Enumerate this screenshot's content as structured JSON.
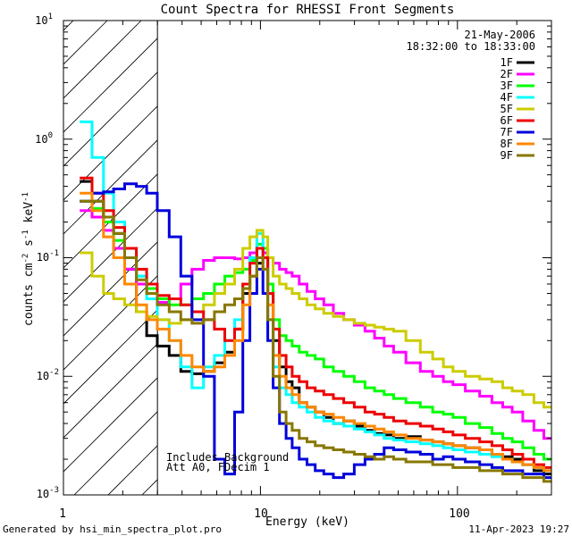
{
  "chart_data": {
    "type": "line",
    "title": "Count Spectra for RHESSI Front Segments",
    "xlabel": "Energy (keV)",
    "ylabel": "counts cm^-2 s^-1 keV^-1",
    "xscale": "log",
    "yscale": "log",
    "xlim": [
      1,
      300
    ],
    "ylim": [
      0.001,
      10
    ],
    "x_tick_labels": [
      {
        "value": 1,
        "label": "1"
      },
      {
        "value": 10,
        "label": "10"
      },
      {
        "value": 100,
        "label": "100"
      }
    ],
    "y_tick_labels": [
      {
        "value": 10,
        "base": "10",
        "exp": "1"
      },
      {
        "value": 1,
        "base": "10",
        "exp": "0"
      },
      {
        "value": 0.1,
        "base": "10",
        "exp": "-1"
      },
      {
        "value": 0.01,
        "base": "10",
        "exp": "-2"
      },
      {
        "value": 0.001,
        "base": "10",
        "exp": "-3"
      }
    ],
    "hatched_region": {
      "x_from": 1,
      "x_to": 3
    },
    "date_label": "21-May-2006",
    "time_label": "18:32:00 to 18:33:00",
    "annotations": [
      "Includes Background",
      "Att A0, FDecim 1"
    ],
    "footer_left": "Generated by hsi_min_spectra_plot.pro",
    "footer_right": "11-Apr-2023 19:27",
    "series": [
      {
        "name": "1F",
        "color": "#000000",
        "x": [
          1.3,
          1.5,
          1.7,
          1.9,
          2.2,
          2.5,
          2.8,
          3.2,
          3.7,
          4.2,
          4.8,
          5.5,
          6.2,
          7.0,
          7.8,
          8.5,
          9.2,
          10.0,
          10.6,
          11.2,
          12.0,
          13.0,
          14.0,
          15.0,
          16.5,
          18.0,
          20.0,
          22.0,
          25.0,
          28.0,
          32.0,
          36.0,
          40.0,
          45.0,
          50.0,
          60.0,
          70.0,
          80.0,
          90.0,
          100.0,
          120.0,
          140.0,
          160.0,
          180.0,
          200.0,
          230.0,
          260.0,
          290.0
        ],
        "y": [
          0.44,
          0.3,
          0.22,
          0.16,
          0.08,
          0.035,
          0.022,
          0.018,
          0.015,
          0.011,
          0.0105,
          0.011,
          0.013,
          0.016,
          0.025,
          0.05,
          0.07,
          0.09,
          0.1,
          0.05,
          0.02,
          0.012,
          0.009,
          0.008,
          0.006,
          0.0055,
          0.005,
          0.0045,
          0.004,
          0.0042,
          0.0038,
          0.0035,
          0.0033,
          0.0032,
          0.003,
          0.0031,
          0.0029,
          0.0028,
          0.0027,
          0.0026,
          0.0025,
          0.0024,
          0.0022,
          0.0021,
          0.002,
          0.0018,
          0.0016,
          0.0015
        ]
      },
      {
        "name": "2F",
        "color": "#ff00ff",
        "x": [
          1.3,
          1.5,
          1.7,
          1.9,
          2.2,
          2.5,
          2.8,
          3.2,
          3.7,
          4.2,
          4.8,
          5.5,
          6.2,
          7.0,
          7.8,
          8.5,
          9.2,
          10.0,
          10.6,
          11.2,
          12.0,
          13.0,
          14.0,
          15.0,
          16.5,
          18.0,
          20.0,
          22.0,
          25.0,
          28.0,
          32.0,
          36.0,
          40.0,
          45.0,
          50.0,
          60.0,
          70.0,
          80.0,
          90.0,
          100.0,
          120.0,
          140.0,
          160.0,
          180.0,
          200.0,
          230.0,
          260.0,
          290.0
        ],
        "y": [
          0.25,
          0.22,
          0.17,
          0.12,
          0.08,
          0.06,
          0.05,
          0.042,
          0.045,
          0.06,
          0.08,
          0.095,
          0.1,
          0.1,
          0.098,
          0.1,
          0.11,
          0.12,
          0.11,
          0.1,
          0.09,
          0.08,
          0.075,
          0.07,
          0.06,
          0.052,
          0.045,
          0.04,
          0.034,
          0.03,
          0.027,
          0.024,
          0.021,
          0.018,
          0.016,
          0.013,
          0.011,
          0.01,
          0.009,
          0.0085,
          0.0075,
          0.0068,
          0.006,
          0.0055,
          0.005,
          0.0042,
          0.0035,
          0.003
        ]
      },
      {
        "name": "3F",
        "color": "#00ff00",
        "x": [
          1.3,
          1.5,
          1.7,
          1.9,
          2.2,
          2.5,
          2.8,
          3.2,
          3.7,
          4.2,
          4.8,
          5.5,
          6.2,
          7.0,
          7.8,
          8.5,
          9.2,
          10.0,
          10.6,
          11.2,
          12.0,
          13.0,
          14.0,
          15.0,
          16.5,
          18.0,
          20.0,
          22.0,
          25.0,
          28.0,
          32.0,
          36.0,
          40.0,
          45.0,
          50.0,
          60.0,
          70.0,
          80.0,
          90.0,
          100.0,
          120.0,
          140.0,
          160.0,
          180.0,
          200.0,
          230.0,
          260.0,
          290.0
        ],
        "y": [
          0.3,
          0.26,
          0.2,
          0.14,
          0.1,
          0.07,
          0.055,
          0.045,
          0.04,
          0.04,
          0.045,
          0.05,
          0.06,
          0.07,
          0.075,
          0.08,
          0.095,
          0.13,
          0.12,
          0.06,
          0.03,
          0.022,
          0.02,
          0.018,
          0.016,
          0.015,
          0.014,
          0.012,
          0.011,
          0.01,
          0.009,
          0.008,
          0.0075,
          0.007,
          0.0065,
          0.006,
          0.0055,
          0.005,
          0.0048,
          0.0045,
          0.004,
          0.0037,
          0.0033,
          0.003,
          0.0028,
          0.0025,
          0.0022,
          0.002
        ]
      },
      {
        "name": "4F",
        "color": "#00ffff",
        "x": [
          1.3,
          1.5,
          1.7,
          1.9,
          2.2,
          2.5,
          2.8,
          3.2,
          3.7,
          4.2,
          4.8,
          5.5,
          6.2,
          7.0,
          7.8,
          8.5,
          9.2,
          10.0,
          10.6,
          11.2,
          12.0,
          13.0,
          14.0,
          15.0,
          16.5,
          18.0,
          20.0,
          22.0,
          25.0,
          28.0,
          32.0,
          36.0,
          40.0,
          45.0,
          50.0,
          60.0,
          70.0,
          80.0,
          90.0,
          100.0,
          120.0,
          140.0,
          160.0,
          180.0,
          200.0,
          230.0,
          260.0,
          290.0
        ],
        "y": [
          1.4,
          0.7,
          0.35,
          0.2,
          0.12,
          0.07,
          0.045,
          0.03,
          0.02,
          0.012,
          0.008,
          0.012,
          0.015,
          0.02,
          0.03,
          0.06,
          0.1,
          0.16,
          0.1,
          0.03,
          0.012,
          0.008,
          0.007,
          0.006,
          0.0055,
          0.005,
          0.0045,
          0.0042,
          0.004,
          0.0038,
          0.0036,
          0.0034,
          0.0032,
          0.003,
          0.0029,
          0.0028,
          0.0027,
          0.0026,
          0.0025,
          0.0024,
          0.0023,
          0.0022,
          0.0021,
          0.002,
          0.0019,
          0.0018,
          0.0017,
          0.0016
        ]
      },
      {
        "name": "5F",
        "color": "#cccc00",
        "x": [
          1.3,
          1.5,
          1.7,
          1.9,
          2.2,
          2.5,
          2.8,
          3.2,
          3.7,
          4.2,
          4.8,
          5.5,
          6.2,
          7.0,
          7.8,
          8.5,
          9.2,
          10.0,
          10.6,
          11.2,
          12.0,
          13.0,
          14.0,
          15.0,
          16.5,
          18.0,
          20.0,
          22.0,
          25.0,
          28.0,
          32.0,
          36.0,
          40.0,
          45.0,
          50.0,
          60.0,
          70.0,
          80.0,
          90.0,
          100.0,
          120.0,
          140.0,
          160.0,
          180.0,
          200.0,
          230.0,
          260.0,
          290.0
        ],
        "y": [
          0.11,
          0.07,
          0.05,
          0.045,
          0.04,
          0.035,
          0.032,
          0.03,
          0.028,
          0.03,
          0.035,
          0.04,
          0.05,
          0.06,
          0.08,
          0.12,
          0.15,
          0.17,
          0.15,
          0.1,
          0.07,
          0.06,
          0.055,
          0.05,
          0.045,
          0.04,
          0.037,
          0.034,
          0.032,
          0.03,
          0.028,
          0.027,
          0.026,
          0.025,
          0.024,
          0.02,
          0.016,
          0.014,
          0.012,
          0.011,
          0.01,
          0.0095,
          0.009,
          0.008,
          0.0075,
          0.007,
          0.006,
          0.0055
        ]
      },
      {
        "name": "6F",
        "color": "#ee0000",
        "x": [
          1.3,
          1.5,
          1.7,
          1.9,
          2.2,
          2.5,
          2.8,
          3.2,
          3.7,
          4.2,
          4.8,
          5.5,
          6.2,
          7.0,
          7.8,
          8.5,
          9.2,
          10.0,
          10.6,
          11.2,
          12.0,
          13.0,
          14.0,
          15.0,
          16.5,
          18.0,
          20.0,
          22.0,
          25.0,
          28.0,
          32.0,
          36.0,
          40.0,
          45.0,
          50.0,
          60.0,
          70.0,
          80.0,
          90.0,
          100.0,
          120.0,
          140.0,
          160.0,
          180.0,
          200.0,
          230.0,
          260.0,
          290.0
        ],
        "y": [
          0.47,
          0.35,
          0.25,
          0.18,
          0.12,
          0.08,
          0.06,
          0.048,
          0.045,
          0.04,
          0.035,
          0.03,
          0.025,
          0.02,
          0.025,
          0.06,
          0.09,
          0.12,
          0.1,
          0.05,
          0.025,
          0.015,
          0.012,
          0.01,
          0.009,
          0.008,
          0.0075,
          0.007,
          0.0065,
          0.006,
          0.0055,
          0.005,
          0.0048,
          0.0045,
          0.0042,
          0.004,
          0.0038,
          0.0036,
          0.0034,
          0.0032,
          0.003,
          0.0028,
          0.0026,
          0.0024,
          0.0022,
          0.002,
          0.0018,
          0.0017
        ]
      },
      {
        "name": "7F",
        "color": "#0000dd",
        "x": [
          1.3,
          1.5,
          1.7,
          1.9,
          2.2,
          2.5,
          2.8,
          3.2,
          3.7,
          4.2,
          4.8,
          5.5,
          6.2,
          7.0,
          7.8,
          8.5,
          9.2,
          10.0,
          10.6,
          11.2,
          12.0,
          13.0,
          14.0,
          15.0,
          16.5,
          18.0,
          20.0,
          22.0,
          25.0,
          28.0,
          32.0,
          36.0,
          40.0,
          45.0,
          50.0,
          60.0,
          70.0,
          80.0,
          90.0,
          100.0,
          120.0,
          140.0,
          160.0,
          180.0,
          200.0,
          230.0,
          260.0,
          290.0
        ],
        "y": [
          0.3,
          0.35,
          0.36,
          0.38,
          0.42,
          0.4,
          0.35,
          0.25,
          0.15,
          0.07,
          0.03,
          0.01,
          0.002,
          0.0015,
          0.005,
          0.02,
          0.05,
          0.08,
          0.05,
          0.02,
          0.008,
          0.004,
          0.003,
          0.0025,
          0.002,
          0.0018,
          0.0016,
          0.0015,
          0.0014,
          0.0015,
          0.0018,
          0.002,
          0.0022,
          0.0025,
          0.0024,
          0.0023,
          0.0022,
          0.002,
          0.0021,
          0.002,
          0.0019,
          0.0018,
          0.0017,
          0.0016,
          0.0016,
          0.0015,
          0.0015,
          0.0014
        ]
      },
      {
        "name": "8F",
        "color": "#ff8800",
        "x": [
          1.3,
          1.5,
          1.7,
          1.9,
          2.2,
          2.5,
          2.8,
          3.2,
          3.7,
          4.2,
          4.8,
          5.5,
          6.2,
          7.0,
          7.8,
          8.5,
          9.2,
          10.0,
          10.6,
          11.2,
          12.0,
          13.0,
          14.0,
          15.0,
          16.5,
          18.0,
          20.0,
          22.0,
          25.0,
          28.0,
          32.0,
          36.0,
          40.0,
          45.0,
          50.0,
          60.0,
          70.0,
          80.0,
          90.0,
          100.0,
          120.0,
          140.0,
          160.0,
          180.0,
          200.0,
          230.0,
          260.0,
          290.0
        ],
        "y": [
          0.35,
          0.25,
          0.15,
          0.1,
          0.06,
          0.04,
          0.03,
          0.025,
          0.02,
          0.015,
          0.012,
          0.011,
          0.012,
          0.015,
          0.02,
          0.04,
          0.07,
          0.1,
          0.08,
          0.04,
          0.015,
          0.01,
          0.008,
          0.007,
          0.006,
          0.0055,
          0.005,
          0.0048,
          0.0045,
          0.0042,
          0.004,
          0.0038,
          0.0036,
          0.0034,
          0.0032,
          0.003,
          0.0029,
          0.0028,
          0.0027,
          0.0026,
          0.0025,
          0.0024,
          0.0022,
          0.002,
          0.0019,
          0.0018,
          0.0017,
          0.0016
        ]
      },
      {
        "name": "9F",
        "color": "#887700",
        "x": [
          1.3,
          1.5,
          1.7,
          1.9,
          2.2,
          2.5,
          2.8,
          3.2,
          3.7,
          4.2,
          4.8,
          5.5,
          6.2,
          7.0,
          7.8,
          8.5,
          9.2,
          10.0,
          10.6,
          11.2,
          12.0,
          13.0,
          14.0,
          15.0,
          16.5,
          18.0,
          20.0,
          22.0,
          25.0,
          28.0,
          32.0,
          36.0,
          40.0,
          45.0,
          50.0,
          60.0,
          70.0,
          80.0,
          90.0,
          100.0,
          120.0,
          140.0,
          160.0,
          180.0,
          200.0,
          230.0,
          260.0,
          290.0
        ],
        "y": [
          0.3,
          0.3,
          0.22,
          0.16,
          0.1,
          0.065,
          0.05,
          0.04,
          0.035,
          0.03,
          0.028,
          0.03,
          0.035,
          0.04,
          0.045,
          0.055,
          0.07,
          0.1,
          0.08,
          0.03,
          0.01,
          0.005,
          0.004,
          0.0035,
          0.003,
          0.0028,
          0.0026,
          0.0025,
          0.0024,
          0.0023,
          0.0022,
          0.0021,
          0.002,
          0.0021,
          0.002,
          0.0019,
          0.0019,
          0.0018,
          0.0018,
          0.0017,
          0.0017,
          0.0016,
          0.0016,
          0.0015,
          0.0015,
          0.0014,
          0.0014,
          0.0013
        ]
      }
    ]
  }
}
